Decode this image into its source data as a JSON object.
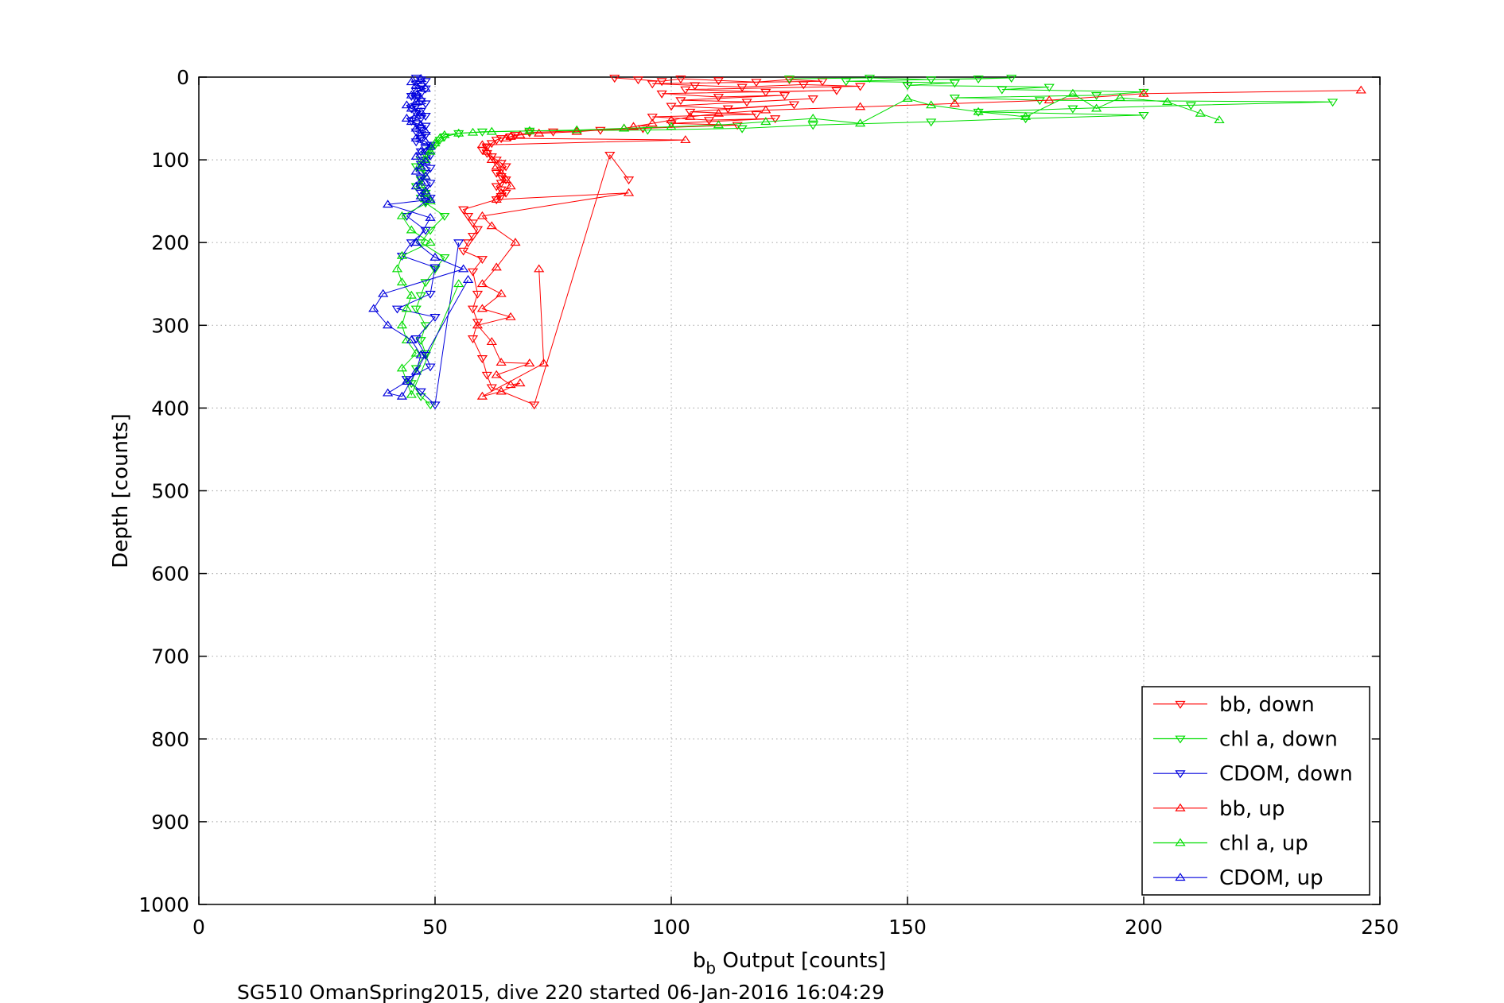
{
  "chart_data": {
    "type": "scatter",
    "xlabel_main": "b",
    "xlabel_sub": "b",
    "xlabel_rest": " Output [counts]",
    "ylabel": "Depth [counts]",
    "caption": "SG510 OmanSpring2015, dive 220 started 06-Jan-2016 16:04:29",
    "xlim": [
      0,
      250
    ],
    "ylim": [
      0,
      1000
    ],
    "y_reversed": true,
    "x_ticks": [
      0,
      50,
      100,
      150,
      200,
      250
    ],
    "y_ticks": [
      0,
      100,
      200,
      300,
      400,
      500,
      600,
      700,
      800,
      900,
      1000
    ],
    "grid": true,
    "legend_position": "bottom-right",
    "series": [
      {
        "name": "bb, down",
        "color": "#ff0000",
        "marker": "triangle-down",
        "points": [
          [
            88,
            1
          ],
          [
            93,
            3
          ],
          [
            98,
            5
          ],
          [
            102,
            2
          ],
          [
            110,
            4
          ],
          [
            118,
            6
          ],
          [
            125,
            3
          ],
          [
            132,
            5
          ],
          [
            96,
            8
          ],
          [
            105,
            10
          ],
          [
            115,
            12
          ],
          [
            128,
            9
          ],
          [
            140,
            11
          ],
          [
            103,
            15
          ],
          [
            120,
            18
          ],
          [
            135,
            16
          ],
          [
            98,
            20
          ],
          [
            110,
            24
          ],
          [
            124,
            22
          ],
          [
            102,
            28
          ],
          [
            116,
            30
          ],
          [
            130,
            26
          ],
          [
            100,
            35
          ],
          [
            112,
            38
          ],
          [
            126,
            33
          ],
          [
            104,
            42
          ],
          [
            118,
            45
          ],
          [
            96,
            48
          ],
          [
            108,
            52
          ],
          [
            122,
            50
          ],
          [
            100,
            56
          ],
          [
            114,
            58
          ],
          [
            94,
            62
          ],
          [
            85,
            64
          ],
          [
            75,
            66
          ],
          [
            70,
            67
          ],
          [
            67,
            70
          ],
          [
            66,
            72
          ],
          [
            64,
            74
          ],
          [
            63,
            76
          ],
          [
            62,
            80
          ],
          [
            61,
            84
          ],
          [
            60,
            88
          ],
          [
            61,
            92
          ],
          [
            62,
            96
          ],
          [
            63,
            100
          ],
          [
            64,
            104
          ],
          [
            65,
            108
          ],
          [
            64,
            112
          ],
          [
            63,
            116
          ],
          [
            64,
            120
          ],
          [
            65,
            124
          ],
          [
            64,
            128
          ],
          [
            63,
            132
          ],
          [
            64,
            136
          ],
          [
            65,
            140
          ],
          [
            64,
            144
          ],
          [
            63,
            148
          ],
          [
            56,
            160
          ],
          [
            57,
            168
          ],
          [
            58,
            176
          ],
          [
            59,
            184
          ],
          [
            58,
            192
          ],
          [
            57,
            200
          ],
          [
            56,
            210
          ],
          [
            60,
            220
          ],
          [
            58,
            235
          ],
          [
            59,
            262
          ],
          [
            58,
            280
          ],
          [
            59,
            296
          ],
          [
            58,
            316
          ],
          [
            60,
            340
          ],
          [
            61,
            360
          ],
          [
            62,
            375
          ],
          [
            71,
            396
          ],
          [
            87,
            94
          ],
          [
            91,
            124
          ]
        ]
      },
      {
        "name": "chl a, down",
        "color": "#00dd00",
        "marker": "triangle-down",
        "points": [
          [
            125,
            2
          ],
          [
            142,
            1
          ],
          [
            155,
            3
          ],
          [
            165,
            2
          ],
          [
            172,
            1
          ],
          [
            137,
            5
          ],
          [
            160,
            7
          ],
          [
            150,
            10
          ],
          [
            180,
            12
          ],
          [
            170,
            15
          ],
          [
            200,
            18
          ],
          [
            190,
            22
          ],
          [
            160,
            25
          ],
          [
            178,
            28
          ],
          [
            240,
            30
          ],
          [
            210,
            34
          ],
          [
            185,
            38
          ],
          [
            165,
            42
          ],
          [
            200,
            46
          ],
          [
            175,
            50
          ],
          [
            155,
            54
          ],
          [
            130,
            58
          ],
          [
            115,
            62
          ],
          [
            95,
            64
          ],
          [
            70,
            65
          ],
          [
            60,
            66
          ],
          [
            55,
            68
          ],
          [
            52,
            72
          ],
          [
            51,
            76
          ],
          [
            50,
            82
          ],
          [
            49,
            88
          ],
          [
            48,
            94
          ],
          [
            47,
            100
          ],
          [
            46,
            108
          ],
          [
            48,
            116
          ],
          [
            47,
            124
          ],
          [
            46,
            132
          ],
          [
            48,
            140
          ],
          [
            47,
            146
          ],
          [
            48,
            152
          ],
          [
            52,
            168
          ],
          [
            49,
            185
          ],
          [
            47,
            200
          ],
          [
            52,
            218
          ],
          [
            50,
            232
          ],
          [
            48,
            248
          ],
          [
            47,
            264
          ],
          [
            46,
            280
          ],
          [
            48,
            300
          ],
          [
            47,
            318
          ],
          [
            48,
            334
          ],
          [
            46,
            352
          ],
          [
            45,
            370
          ],
          [
            47,
            386
          ],
          [
            49,
            396
          ]
        ]
      },
      {
        "name": "CDOM, down",
        "color": "#0000dd",
        "marker": "triangle-down",
        "points": [
          [
            46,
            1
          ],
          [
            47,
            3
          ],
          [
            48,
            5
          ],
          [
            46,
            8
          ],
          [
            47,
            11
          ],
          [
            48,
            14
          ],
          [
            46,
            17
          ],
          [
            47,
            20
          ],
          [
            45,
            23
          ],
          [
            46,
            26
          ],
          [
            47,
            29
          ],
          [
            48,
            32
          ],
          [
            46,
            35
          ],
          [
            45,
            38
          ],
          [
            47,
            41
          ],
          [
            46,
            44
          ],
          [
            48,
            47
          ],
          [
            47,
            50
          ],
          [
            45,
            53
          ],
          [
            46,
            56
          ],
          [
            48,
            59
          ],
          [
            47,
            62
          ],
          [
            46,
            66
          ],
          [
            48,
            70
          ],
          [
            47,
            74
          ],
          [
            46,
            78
          ],
          [
            49,
            82
          ],
          [
            48,
            86
          ],
          [
            47,
            90
          ],
          [
            49,
            95
          ],
          [
            48,
            100
          ],
          [
            47,
            105
          ],
          [
            49,
            110
          ],
          [
            48,
            116
          ],
          [
            47,
            122
          ],
          [
            49,
            128
          ],
          [
            48,
            134
          ],
          [
            47,
            140
          ],
          [
            49,
            146
          ],
          [
            48,
            150
          ],
          [
            44,
            168
          ],
          [
            48,
            185
          ],
          [
            45,
            200
          ],
          [
            43,
            216
          ],
          [
            50,
            230
          ],
          [
            49,
            262
          ],
          [
            42,
            280
          ],
          [
            50,
            290
          ],
          [
            46,
            316
          ],
          [
            48,
            336
          ],
          [
            49,
            350
          ],
          [
            44,
            365
          ],
          [
            47,
            380
          ],
          [
            50,
            396
          ],
          [
            55,
            200
          ]
        ]
      },
      {
        "name": "bb, up",
        "color": "#ff0000",
        "marker": "triangle-up",
        "points": [
          [
            246,
            16
          ],
          [
            200,
            20
          ],
          [
            180,
            28
          ],
          [
            160,
            32
          ],
          [
            140,
            36
          ],
          [
            120,
            40
          ],
          [
            110,
            44
          ],
          [
            104,
            48
          ],
          [
            100,
            52
          ],
          [
            96,
            56
          ],
          [
            92,
            60
          ],
          [
            90,
            62
          ],
          [
            80,
            66
          ],
          [
            72,
            68
          ],
          [
            68,
            70
          ],
          [
            66,
            72
          ],
          [
            65,
            74
          ],
          [
            103,
            76
          ],
          [
            60,
            82
          ],
          [
            61,
            90
          ],
          [
            62,
            100
          ],
          [
            63,
            108
          ],
          [
            64,
            116
          ],
          [
            65,
            124
          ],
          [
            66,
            132
          ],
          [
            64,
            140
          ],
          [
            63,
            148
          ],
          [
            91,
            140
          ],
          [
            60,
            168
          ],
          [
            62,
            180
          ],
          [
            67,
            200
          ],
          [
            63,
            230
          ],
          [
            60,
            250
          ],
          [
            64,
            262
          ],
          [
            60,
            280
          ],
          [
            66,
            290
          ],
          [
            59,
            300
          ],
          [
            62,
            320
          ],
          [
            64,
            345
          ],
          [
            70,
            346
          ],
          [
            63,
            360
          ],
          [
            66,
            372
          ],
          [
            68,
            370
          ],
          [
            64,
            380
          ],
          [
            60,
            386
          ],
          [
            73,
            346
          ],
          [
            72,
            232
          ]
        ]
      },
      {
        "name": "chl a, up",
        "color": "#00dd00",
        "marker": "triangle-up",
        "points": [
          [
            216,
            52
          ],
          [
            212,
            44
          ],
          [
            205,
            30
          ],
          [
            195,
            25
          ],
          [
            190,
            38
          ],
          [
            185,
            20
          ],
          [
            175,
            48
          ],
          [
            165,
            42
          ],
          [
            155,
            34
          ],
          [
            150,
            26
          ],
          [
            140,
            56
          ],
          [
            130,
            50
          ],
          [
            120,
            54
          ],
          [
            110,
            58
          ],
          [
            100,
            60
          ],
          [
            90,
            62
          ],
          [
            80,
            64
          ],
          [
            70,
            65
          ],
          [
            62,
            66
          ],
          [
            58,
            67
          ],
          [
            55,
            68
          ],
          [
            52,
            70
          ],
          [
            51,
            74
          ],
          [
            50,
            80
          ],
          [
            49,
            90
          ],
          [
            48,
            100
          ],
          [
            47,
            110
          ],
          [
            48,
            120
          ],
          [
            47,
            130
          ],
          [
            48,
            140
          ],
          [
            49,
            150
          ],
          [
            43,
            168
          ],
          [
            45,
            185
          ],
          [
            49,
            200
          ],
          [
            43,
            216
          ],
          [
            42,
            232
          ],
          [
            43,
            248
          ],
          [
            45,
            264
          ],
          [
            44,
            280
          ],
          [
            43,
            300
          ],
          [
            44,
            318
          ],
          [
            46,
            334
          ],
          [
            43,
            352
          ],
          [
            44,
            368
          ],
          [
            45,
            384
          ],
          [
            55,
            250
          ]
        ]
      },
      {
        "name": "CDOM, up",
        "color": "#0000dd",
        "marker": "triangle-up",
        "points": [
          [
            47,
            2
          ],
          [
            45,
            6
          ],
          [
            46,
            10
          ],
          [
            48,
            14
          ],
          [
            46,
            18
          ],
          [
            45,
            22
          ],
          [
            47,
            26
          ],
          [
            46,
            30
          ],
          [
            44,
            34
          ],
          [
            45,
            38
          ],
          [
            47,
            42
          ],
          [
            46,
            46
          ],
          [
            44,
            50
          ],
          [
            45,
            54
          ],
          [
            47,
            58
          ],
          [
            46,
            62
          ],
          [
            48,
            66
          ],
          [
            47,
            70
          ],
          [
            46,
            74
          ],
          [
            48,
            78
          ],
          [
            49,
            84
          ],
          [
            47,
            90
          ],
          [
            46,
            96
          ],
          [
            48,
            102
          ],
          [
            47,
            108
          ],
          [
            46,
            114
          ],
          [
            48,
            120
          ],
          [
            47,
            126
          ],
          [
            46,
            132
          ],
          [
            48,
            138
          ],
          [
            47,
            144
          ],
          [
            49,
            148
          ],
          [
            40,
            154
          ],
          [
            49,
            170
          ],
          [
            46,
            200
          ],
          [
            50,
            218
          ],
          [
            56,
            232
          ],
          [
            39,
            262
          ],
          [
            37,
            280
          ],
          [
            40,
            300
          ],
          [
            45,
            318
          ],
          [
            47,
            336
          ],
          [
            46,
            356
          ],
          [
            44,
            368
          ],
          [
            40,
            382
          ],
          [
            43,
            386
          ],
          [
            57,
            245
          ]
        ]
      }
    ]
  }
}
